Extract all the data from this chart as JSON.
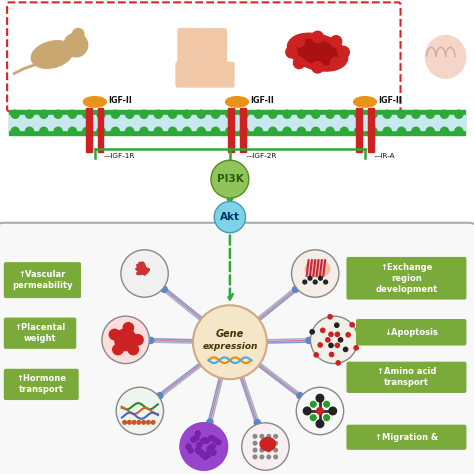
{
  "background_color": "#ffffff",
  "membrane_color": "#2ea836",
  "membrane_inner": "#ddeeff",
  "receptor_color": "#cc2222",
  "igf_color": "#e8931a",
  "pi3k_color": "#8fc45a",
  "akt_color": "#7dd4e8",
  "gene_expr_color": "#f5e6c8",
  "box_color": "#7aaa3a",
  "box_text_color": "#ffffff",
  "dashed_box_color": "#dd2222",
  "arrow_color": "#2ea836",
  "line_color1": "#6688cc",
  "line_color2": "#cc6688",
  "line_color3": "#88aacc",
  "receptor_labels": [
    "IGF-1R",
    "IGF-2R",
    "IR-A"
  ],
  "igf_labels": [
    "IGF-II",
    "IGF-II",
    "IGF-II"
  ],
  "center_label": "Gene\nexpression",
  "pi3k_label": "PI3K",
  "akt_label": "Akt",
  "label_boxes_left": [
    {
      "text": "↑Vascular\npermeability"
    },
    {
      "text": "↑Placental\nweight"
    },
    {
      "text": "↑Hormone\ntransport"
    }
  ],
  "label_boxes_right": [
    {
      "text": "↑Exchange\nregion\ndevelopment"
    },
    {
      "text": "↓Apoptosis"
    },
    {
      "text": "↑Amino acid\ntransport"
    },
    {
      "text": "↑Migration &"
    }
  ]
}
